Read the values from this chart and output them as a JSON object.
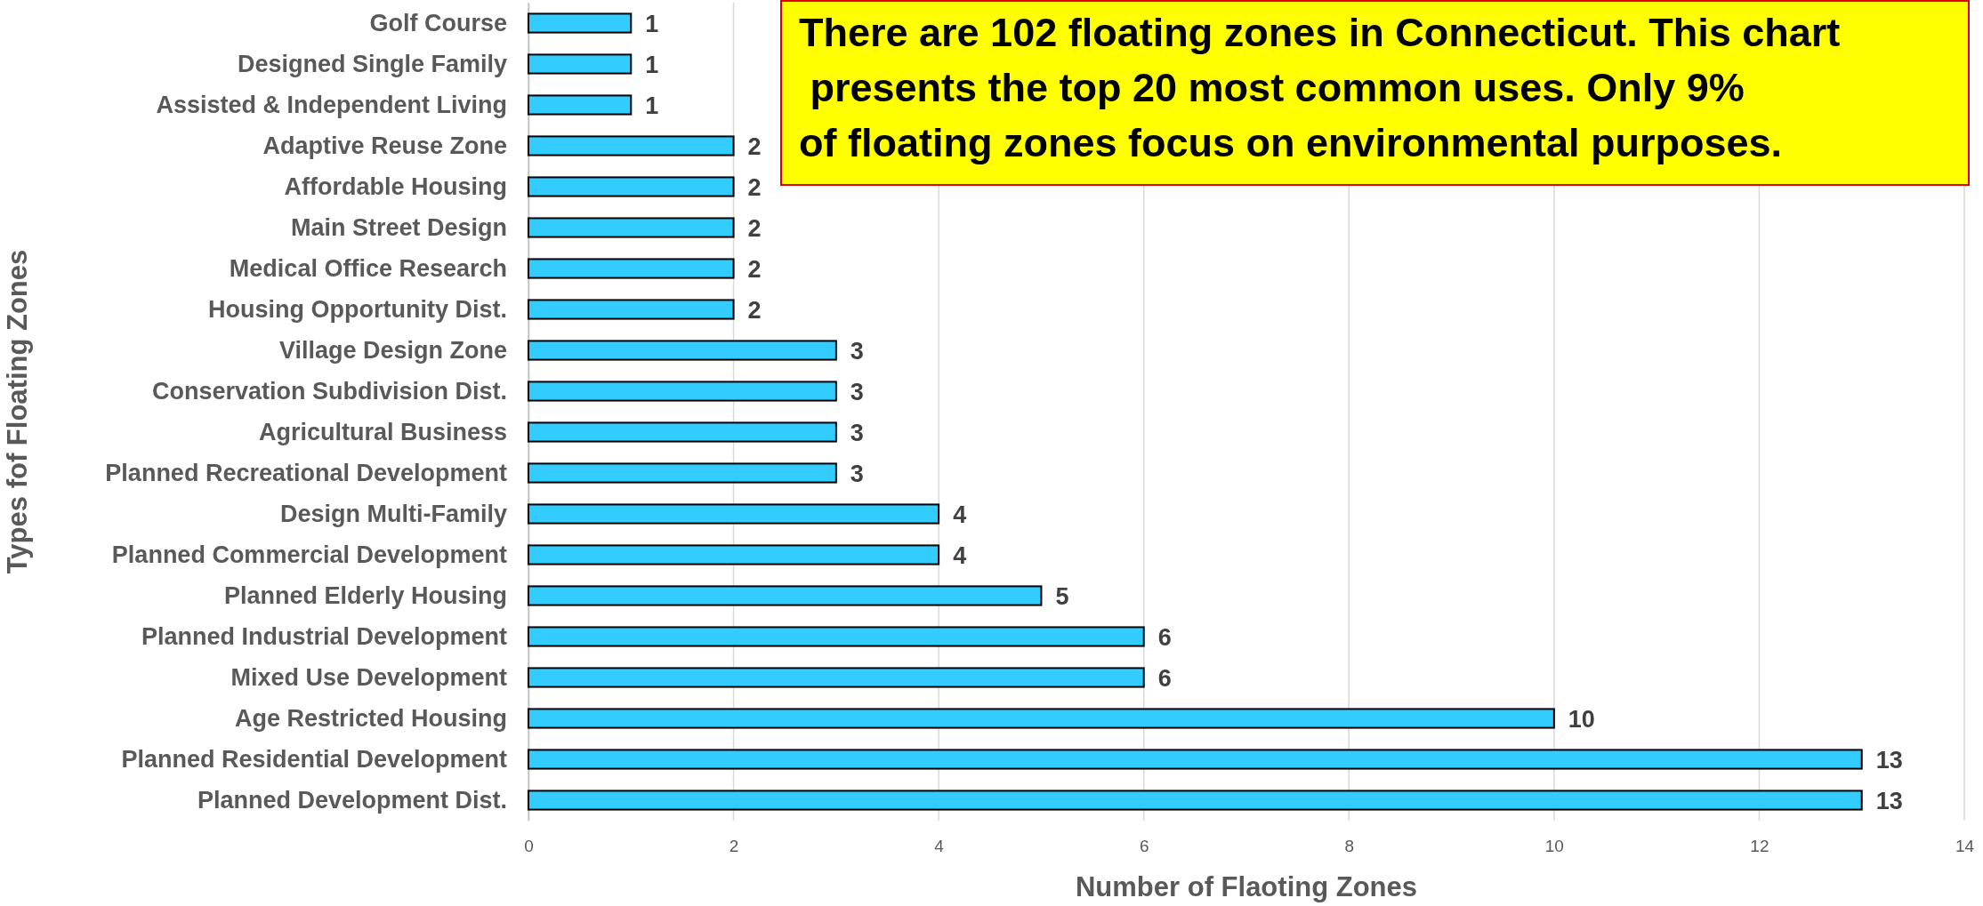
{
  "chart_data": {
    "type": "bar",
    "orientation": "horizontal",
    "xlabel": "Number of Flaoting Zones",
    "ylabel": "Types fof Floating Zones",
    "categories": [
      "Golf Course",
      "Designed Single Family",
      "Assisted & Independent Living",
      "Adaptive Reuse Zone",
      "Affordable Housing",
      "Main Street Design",
      "Medical Office Research",
      "Housing Opportunity Dist.",
      "Village Design Zone",
      "Conservation Subdivision Dist.",
      "Agricultural Business",
      "Planned Recreational Development",
      "Design Multi-Family",
      "Planned Commercial Development",
      "Planned Elderly Housing",
      "Planned Industrial Development",
      "Mixed Use Development",
      "Age Restricted Housing",
      "Planned Residential Development",
      "Planned Development Dist."
    ],
    "values": [
      1,
      1,
      1,
      2,
      2,
      2,
      2,
      2,
      3,
      3,
      3,
      3,
      4,
      4,
      5,
      6,
      6,
      10,
      13,
      13
    ],
    "color": "#33ccff",
    "xlim": [
      0,
      14
    ],
    "xticks": [
      0,
      2,
      4,
      6,
      8,
      10,
      12,
      14
    ],
    "grid": "x",
    "data_labels": true,
    "annotations": [
      "There are 102 floating zones in Connecticut. This chart\n presents the top 20 most common uses. Only 9%\nof floating zones focus on environmental purposes."
    ]
  }
}
